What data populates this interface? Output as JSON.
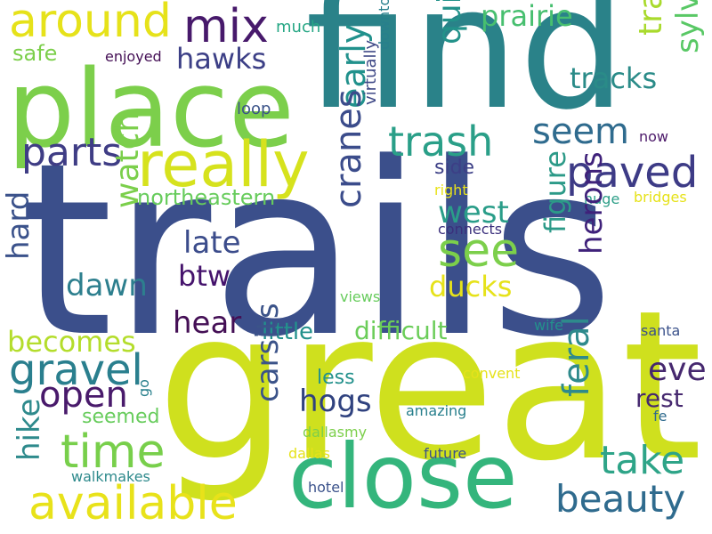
{
  "words": [
    {
      "text": "trails",
      "color": "#3b4f8b",
      "rotate": false
    },
    {
      "text": "great",
      "color": "#cfe01e",
      "rotate": false
    },
    {
      "text": "find",
      "color": "#2a8289",
      "rotate": false
    },
    {
      "text": "place",
      "color": "#7ccf4b",
      "rotate": false
    },
    {
      "text": "close",
      "color": "#34b57c",
      "rotate": false
    },
    {
      "text": "really",
      "color": "#d6e21d",
      "rotate": false
    },
    {
      "text": "available",
      "color": "#e8e21a",
      "rotate": false
    },
    {
      "text": "around",
      "color": "#e6e21a",
      "rotate": false
    },
    {
      "text": "mix",
      "color": "#47196b",
      "rotate": false
    },
    {
      "text": "hawks",
      "color": "#3c3f86",
      "rotate": false
    },
    {
      "text": "prairie",
      "color": "#47bf6f",
      "rotate": false
    },
    {
      "text": "quiet",
      "color": "#23928a",
      "rotate": true
    },
    {
      "text": "tracks",
      "color": "#a9da2d",
      "rotate": true
    },
    {
      "text": "tracks",
      "color": "#2a8b88",
      "rotate": false
    },
    {
      "text": "sylvan",
      "color": "#59c865",
      "rotate": true
    },
    {
      "text": "safe",
      "color": "#7ccf4b",
      "rotate": false
    },
    {
      "text": "enjoyed",
      "color": "#440f55",
      "rotate": false
    },
    {
      "text": "much",
      "color": "#27a785",
      "rotate": false
    },
    {
      "text": "downtown",
      "color": "#287f8c",
      "rotate": true
    },
    {
      "text": "loop",
      "color": "#3b5389",
      "rotate": false
    },
    {
      "text": "early",
      "color": "#21918c",
      "rotate": true
    },
    {
      "text": "virtually",
      "color": "#3f4987",
      "rotate": true
    },
    {
      "text": "trash",
      "color": "#2a9f88",
      "rotate": false
    },
    {
      "text": "seem",
      "color": "#2f6b8e",
      "rotate": false
    },
    {
      "text": "now",
      "color": "#4d1a6a",
      "rotate": false
    },
    {
      "text": "parts",
      "color": "#3f3d85",
      "rotate": false
    },
    {
      "text": "paved",
      "color": "#3d3b86",
      "rotate": false
    },
    {
      "text": "northeastern",
      "color": "#67cc5c",
      "rotate": false
    },
    {
      "text": "side",
      "color": "#3c3f86",
      "rotate": false
    },
    {
      "text": "right",
      "color": "#e8e21a",
      "rotate": false
    },
    {
      "text": "huge",
      "color": "#2e9f88",
      "rotate": false
    },
    {
      "text": "bridges",
      "color": "#e6e21a",
      "rotate": false
    },
    {
      "text": "watch",
      "color": "#7bcf4b",
      "rotate": true
    },
    {
      "text": "cranes",
      "color": "#3b4c8b",
      "rotate": true
    },
    {
      "text": "west",
      "color": "#2a9d89",
      "rotate": false
    },
    {
      "text": "see",
      "color": "#7ccf4b",
      "rotate": false
    },
    {
      "text": "connects",
      "color": "#3a2f7c",
      "rotate": false
    },
    {
      "text": "figure",
      "color": "#2c9a88",
      "rotate": true
    },
    {
      "text": "herons",
      "color": "#3f217a",
      "rotate": true
    },
    {
      "text": "late",
      "color": "#3b4c8b",
      "rotate": false
    },
    {
      "text": "hard",
      "color": "#3b528b",
      "rotate": true
    },
    {
      "text": "dawn",
      "color": "#2d7f8e",
      "rotate": false
    },
    {
      "text": "btw",
      "color": "#45136c",
      "rotate": false
    },
    {
      "text": "ducks",
      "color": "#e6e21a",
      "rotate": false
    },
    {
      "text": "views",
      "color": "#67cc5c",
      "rotate": false
    },
    {
      "text": "hear",
      "color": "#440f55",
      "rotate": false
    },
    {
      "text": "becomes",
      "color": "#b4dd2c",
      "rotate": false
    },
    {
      "text": "little",
      "color": "#23918c",
      "rotate": false
    },
    {
      "text": "difficult",
      "color": "#6bcd59",
      "rotate": false
    },
    {
      "text": "wife",
      "color": "#23918c",
      "rotate": false
    },
    {
      "text": "santa",
      "color": "#3b528b",
      "rotate": false
    },
    {
      "text": "gravel",
      "color": "#2a7f8e",
      "rotate": false
    },
    {
      "text": "eve",
      "color": "#46286f",
      "rotate": false
    },
    {
      "text": "open",
      "color": "#491a6b",
      "rotate": false
    },
    {
      "text": "less",
      "color": "#23918c",
      "rotate": false
    },
    {
      "text": "convent",
      "color": "#e6e21a",
      "rotate": false
    },
    {
      "text": "hogs",
      "color": "#30427f",
      "rotate": false
    },
    {
      "text": "rest",
      "color": "#46286f",
      "rotate": false
    },
    {
      "text": "go",
      "color": "#287f8c",
      "rotate": true
    },
    {
      "text": "feral",
      "color": "#2e8a8c",
      "rotate": true
    },
    {
      "text": "carsits",
      "color": "#3b5389",
      "rotate": true
    },
    {
      "text": "time",
      "color": "#78cf4b",
      "rotate": false
    },
    {
      "text": "seemed",
      "color": "#67cc5c",
      "rotate": false
    },
    {
      "text": "amazing",
      "color": "#287f8c",
      "rotate": false
    },
    {
      "text": "fe",
      "color": "#2f6b8e",
      "rotate": false
    },
    {
      "text": "take",
      "color": "#2ea488",
      "rotate": false
    },
    {
      "text": "hike",
      "color": "#2e8a8c",
      "rotate": true
    },
    {
      "text": "dallasmy",
      "color": "#7ccf4b",
      "rotate": false
    },
    {
      "text": "beauty",
      "color": "#2f6b8e",
      "rotate": false
    },
    {
      "text": "walkmakes",
      "color": "#2e8a8c",
      "rotate": false
    },
    {
      "text": "dallas",
      "color": "#e6e21a",
      "rotate": false
    },
    {
      "text": "future",
      "color": "#3b528b",
      "rotate": false
    },
    {
      "text": "hotel",
      "color": "#3b528b",
      "rotate": false
    }
  ]
}
